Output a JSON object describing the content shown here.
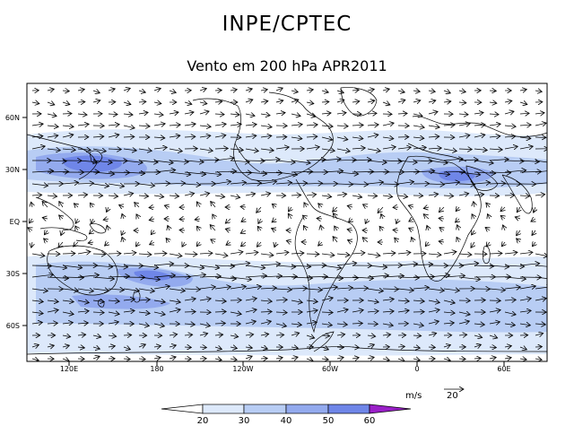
{
  "header": {
    "title": "INPE/CPTEC",
    "subtitle": "Vento em 200 hPa APR2011"
  },
  "map": {
    "lat_labels": [
      "60N",
      "30N",
      "EQ",
      "30S",
      "60S"
    ],
    "lon_labels": [
      "120E",
      "180",
      "120W",
      "60W",
      "0",
      "60E"
    ],
    "lat_values": [
      60,
      30,
      0,
      -30,
      -60
    ],
    "lon_values": [
      120,
      180,
      240,
      300,
      360,
      420
    ],
    "lon_range": [
      80,
      450
    ],
    "lat_range": [
      -80,
      80
    ]
  },
  "legend": {
    "units": "m/s",
    "ref_arrow_label": "20",
    "levels": [
      "20",
      "30",
      "40",
      "50",
      "60"
    ],
    "colors": [
      "#ffffff",
      "#dde9fb",
      "#b8cdf4",
      "#93aaee",
      "#6f86e8",
      "#4e62e0",
      "#9a20c8"
    ]
  }
}
